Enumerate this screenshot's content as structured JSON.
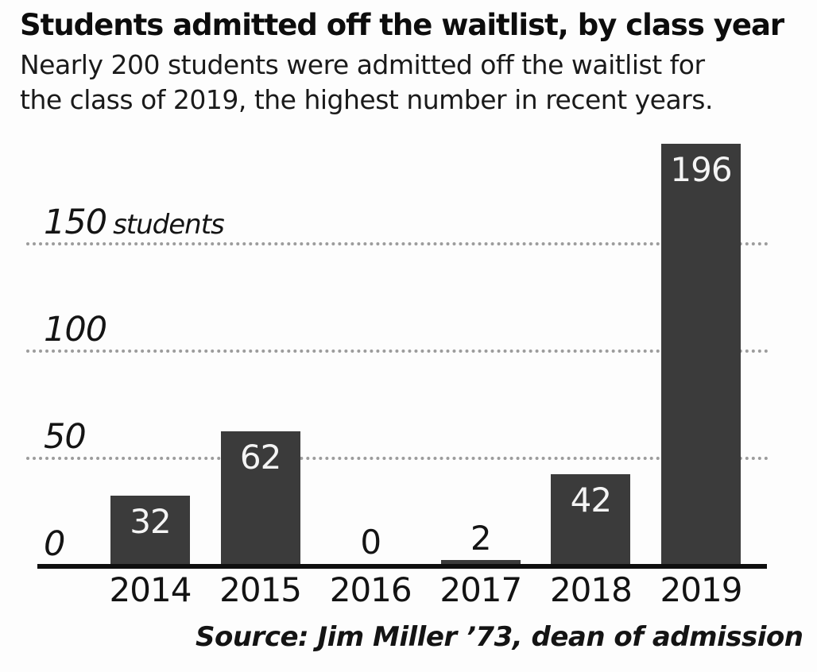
{
  "header": {
    "title": "Students admitted off the waitlist, by class year",
    "subtitle_lines": [
      "Nearly 200 students were admitted off the waitlist for",
      "the class of 2019, the highest number in recent years."
    ]
  },
  "chart_data": {
    "type": "bar",
    "categories": [
      "2014",
      "2015",
      "2016",
      "2017",
      "2018",
      "2019"
    ],
    "values": [
      32,
      62,
      0,
      2,
      42,
      196
    ],
    "title": "Students admitted off the waitlist, by class year",
    "xlabel": "",
    "ylabel": "students",
    "ylim": [
      0,
      200
    ],
    "yticks": [
      0,
      50,
      100,
      150
    ],
    "ytick_unit_label": "students",
    "grid": "horizontal-dotted",
    "legend": "none",
    "bar_color": "#3b3b3b",
    "grid_color": "#9c9c9c",
    "axis_color": "#0f0f0f",
    "value_label_inside_color": "#f4f4f4",
    "value_label_outside_color": "#141414"
  },
  "source": {
    "text": "Source: Jim Miller ’73, dean of admission"
  }
}
